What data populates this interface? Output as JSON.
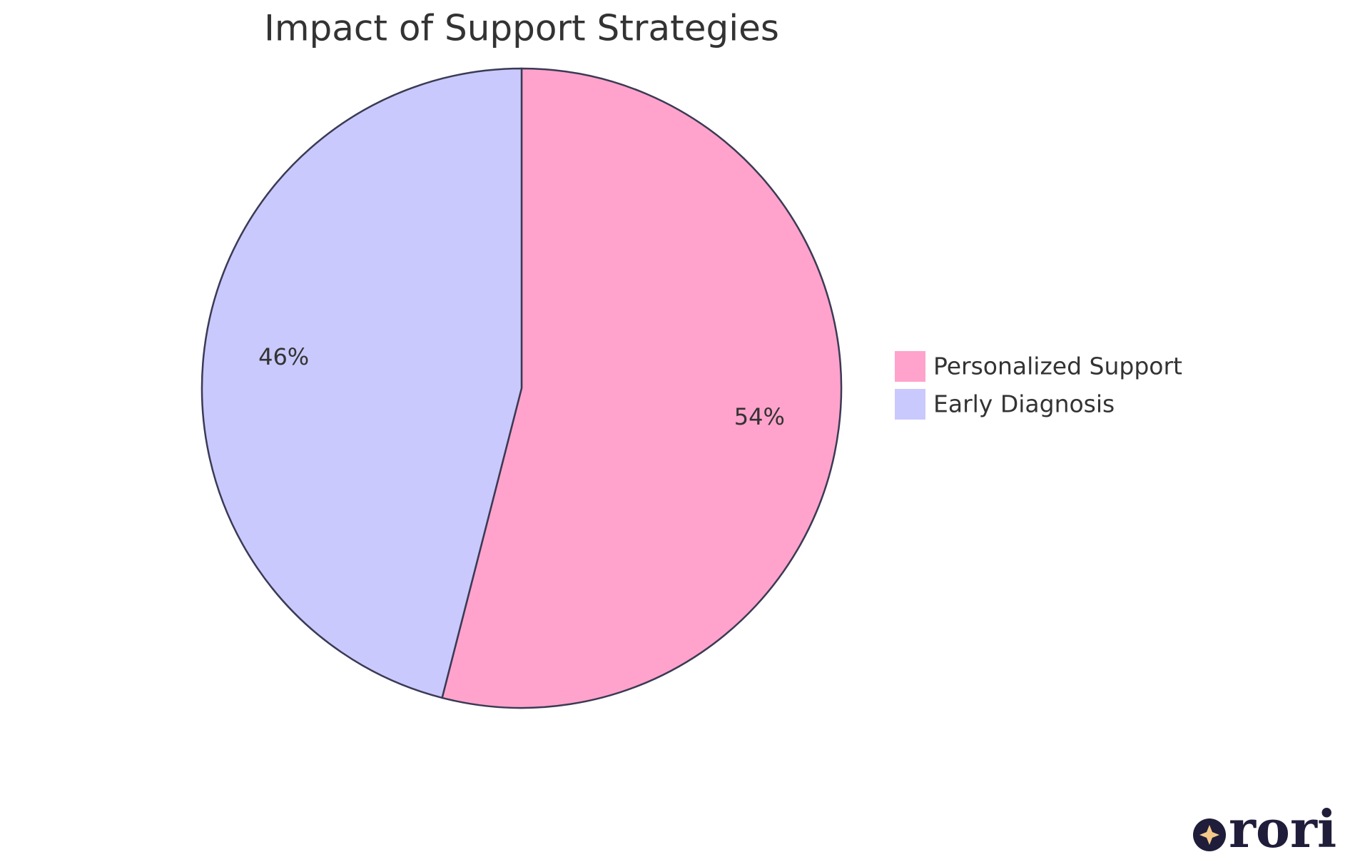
{
  "chart_data": {
    "type": "pie",
    "title": "Impact of Support Strategies",
    "categories": [
      "Personalized Support",
      "Early Diagnosis"
    ],
    "values": [
      54,
      46
    ],
    "value_labels": [
      "54%",
      "46%"
    ],
    "colors": [
      "#ffa3cc",
      "#c9c9fd"
    ],
    "legend": "right"
  },
  "logo": "rori"
}
